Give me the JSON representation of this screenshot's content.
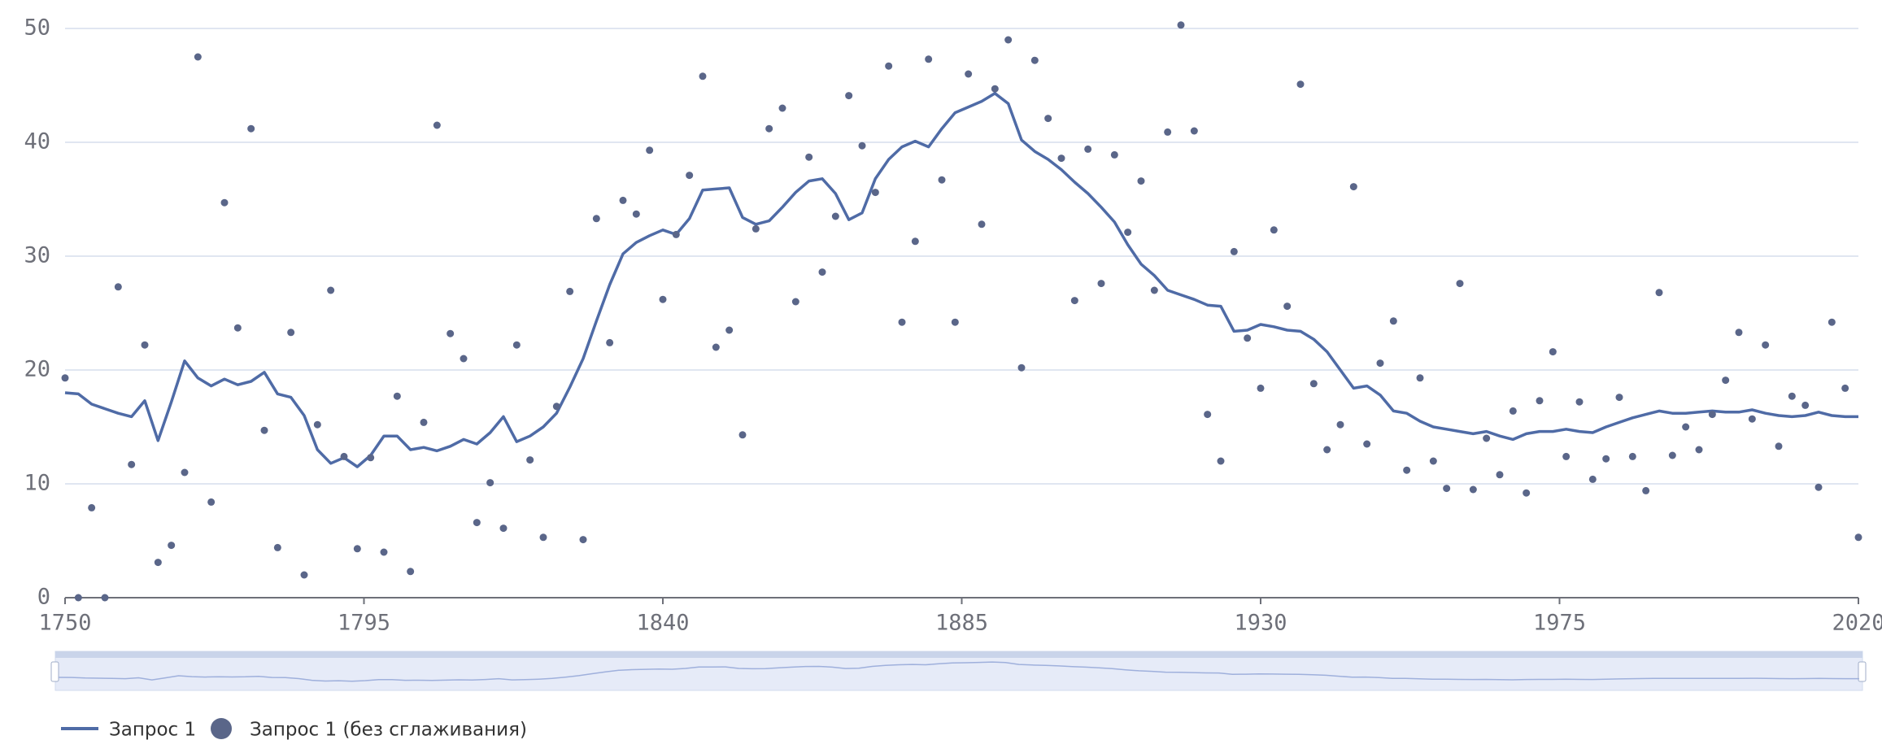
{
  "chart_data": {
    "type": "line",
    "x": [
      1750,
      1752,
      1754,
      1756,
      1758,
      1760,
      1762,
      1764,
      1766,
      1768,
      1770,
      1772,
      1774,
      1776,
      1778,
      1780,
      1782,
      1784,
      1786,
      1788,
      1790,
      1792,
      1794,
      1796,
      1798,
      1800,
      1802,
      1804,
      1806,
      1808,
      1810,
      1812,
      1814,
      1816,
      1818,
      1820,
      1822,
      1824,
      1826,
      1828,
      1830,
      1832,
      1834,
      1836,
      1838,
      1840,
      1842,
      1844,
      1846,
      1848,
      1850,
      1852,
      1854,
      1856,
      1858,
      1860,
      1862,
      1864,
      1866,
      1868,
      1870,
      1872,
      1874,
      1876,
      1878,
      1880,
      1882,
      1884,
      1886,
      1888,
      1890,
      1892,
      1894,
      1896,
      1898,
      1900,
      1902,
      1904,
      1906,
      1908,
      1910,
      1912,
      1914,
      1916,
      1918,
      1920,
      1922,
      1924,
      1926,
      1928,
      1930,
      1932,
      1934,
      1936,
      1938,
      1940,
      1942,
      1944,
      1946,
      1948,
      1950,
      1952,
      1954,
      1956,
      1958,
      1960,
      1962,
      1964,
      1966,
      1968,
      1970,
      1972,
      1974,
      1976,
      1978,
      1980,
      1982,
      1984,
      1986,
      1988,
      1990,
      1992,
      1994,
      1996,
      1998,
      2000,
      2002,
      2004,
      2006,
      2008,
      2010,
      2012,
      2014,
      2016,
      2018,
      2020
    ],
    "series": [
      {
        "name": "Запрос 1",
        "color": "#4f6ba6",
        "kind": "line",
        "values": [
          18.0,
          17.9,
          17.0,
          16.6,
          16.2,
          15.9,
          17.3,
          13.8,
          17.2,
          20.8,
          19.3,
          18.6,
          19.2,
          18.7,
          19.0,
          19.8,
          17.9,
          17.6,
          16.0,
          13.0,
          11.8,
          12.3,
          11.5,
          12.5,
          14.2,
          14.2,
          13.0,
          13.2,
          12.9,
          13.3,
          13.9,
          13.5,
          14.5,
          15.9,
          13.7,
          14.2,
          15.0,
          16.2,
          18.5,
          21.0,
          24.3,
          27.5,
          30.2,
          31.2,
          31.8,
          32.3,
          31.9,
          33.3,
          35.8,
          35.9,
          36.0,
          33.4,
          32.8,
          33.1,
          34.3,
          35.6,
          36.6,
          36.8,
          35.5,
          33.2,
          33.8,
          36.8,
          38.5,
          39.6,
          40.1,
          39.6,
          41.2,
          42.6,
          43.1,
          43.6,
          44.3,
          43.4,
          40.2,
          39.2,
          38.5,
          37.6,
          36.5,
          35.5,
          34.3,
          33.0,
          31.0,
          29.3,
          28.3,
          27.0,
          26.6,
          26.2,
          25.7,
          25.6,
          23.4,
          23.5,
          24.0,
          23.8,
          23.5,
          23.4,
          22.7,
          21.6,
          20.0,
          18.4,
          18.6,
          17.8,
          16.4,
          16.2,
          15.5,
          15.0,
          14.8,
          14.6,
          14.4,
          14.6,
          14.2,
          13.9,
          14.4,
          14.6,
          14.6,
          14.8,
          14.6,
          14.5,
          15.0,
          15.4,
          15.8,
          16.1,
          16.4,
          16.2,
          16.2,
          16.3,
          16.4,
          16.3,
          16.3,
          16.5,
          16.2,
          16.0,
          15.9,
          16.0,
          16.3,
          16.0,
          15.9,
          15.9
        ]
      },
      {
        "name": "Запрос 1 (без сглаживания)",
        "color": "#5a6689",
        "kind": "scatter",
        "values": [
          19.3,
          0,
          7.9,
          0,
          27.3,
          11.7,
          22.2,
          3.1,
          4.6,
          11.0,
          47.5,
          8.4,
          34.7,
          23.7,
          41.2,
          14.7,
          4.4,
          23.3,
          2.0,
          15.2,
          27.0,
          12.4,
          4.3,
          12.3,
          4.0,
          17.7,
          2.3,
          15.4,
          41.5,
          23.2,
          21.0,
          6.6,
          10.1,
          6.1,
          22.2,
          12.1,
          5.3,
          16.8,
          26.9,
          5.1,
          33.3,
          22.4,
          34.9,
          33.7,
          39.3,
          26.2,
          31.9,
          37.1,
          45.8,
          22.0,
          23.5,
          14.3,
          32.4,
          41.2,
          43.0,
          26.0,
          38.7,
          28.6,
          33.5,
          44.1,
          39.7,
          35.6,
          46.7,
          24.2,
          31.3,
          47.3,
          36.7,
          24.2,
          46.0,
          32.8,
          44.7,
          49.0,
          20.2,
          47.2,
          42.1,
          38.6,
          26.1,
          39.4,
          27.6,
          38.9,
          32.1,
          36.6,
          27.0,
          40.9,
          50.3,
          41.0,
          16.1,
          12.0,
          30.4,
          22.8,
          18.4,
          32.3,
          25.6,
          45.1,
          18.8,
          13.0,
          15.2,
          36.1,
          13.5,
          20.6,
          24.3,
          11.2,
          19.3,
          12.0,
          9.6,
          27.6,
          9.5,
          14.0,
          10.8,
          16.4,
          9.2,
          17.3,
          21.6,
          12.4,
          17.2,
          10.4,
          12.2,
          17.6,
          12.4,
          9.4,
          26.8,
          12.5,
          15.0,
          13.0,
          16.1,
          19.1,
          23.3,
          15.7,
          22.2,
          13.3,
          17.7,
          16.9,
          9.7,
          24.2,
          18.4,
          5.3
        ]
      }
    ],
    "xlim": [
      1750,
      2020
    ],
    "xticks": [
      1750,
      1795,
      1840,
      1885,
      1930,
      1975,
      2020
    ],
    "ylim": [
      0,
      50
    ],
    "yticks": [
      0,
      10,
      20,
      30,
      40,
      50
    ],
    "grid": true
  }
}
